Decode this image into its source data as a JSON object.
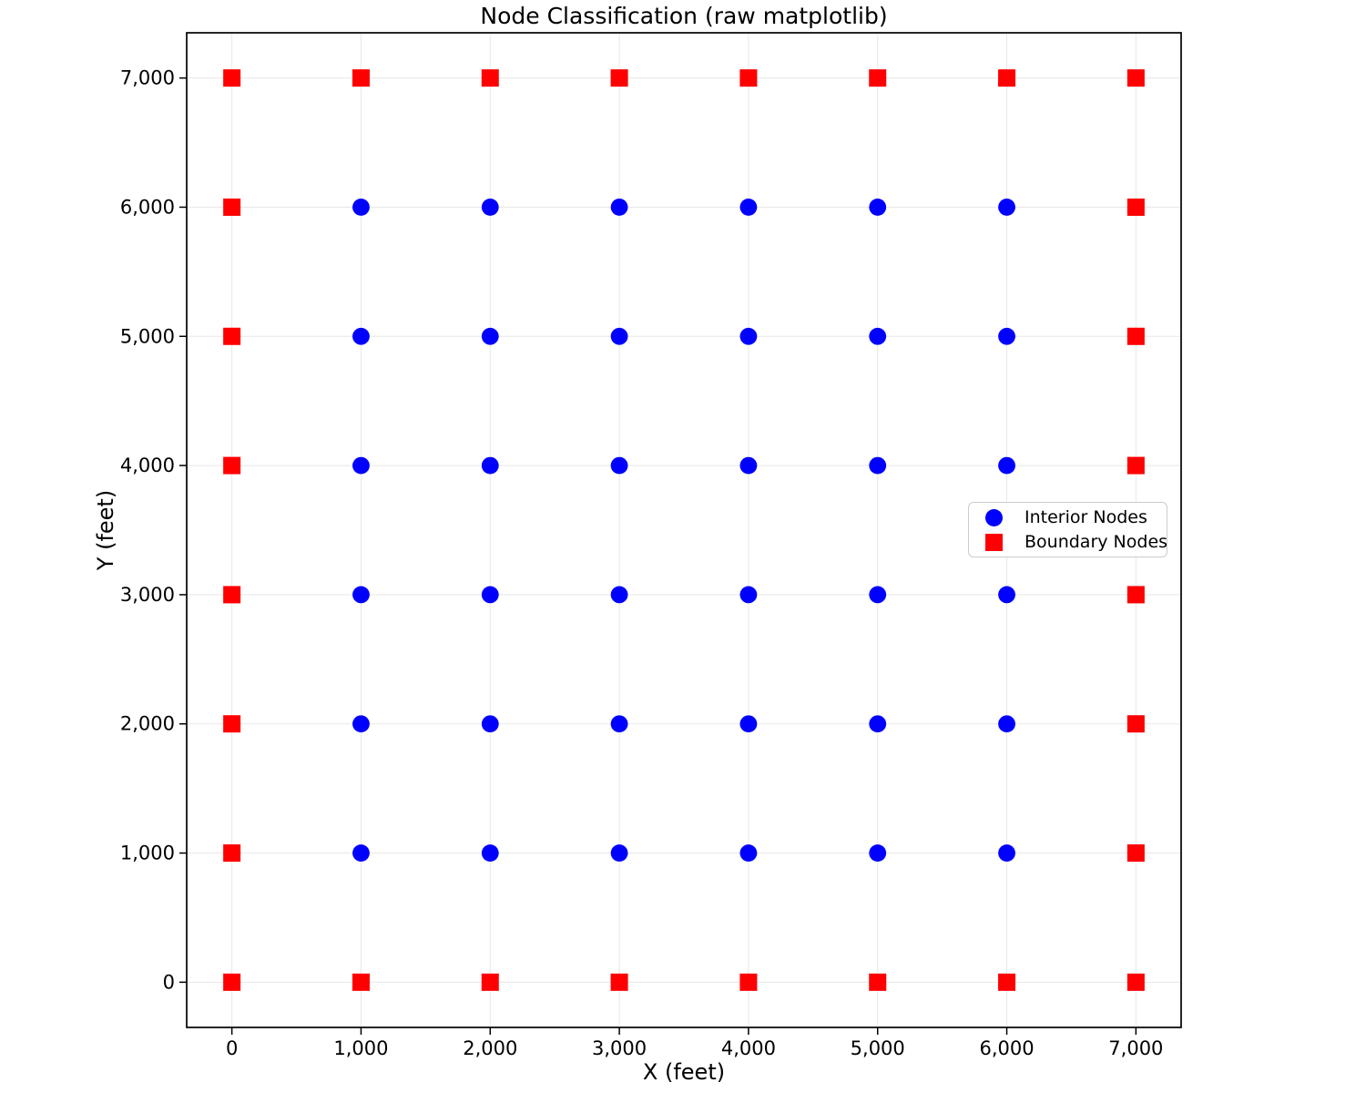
{
  "chart_data": {
    "type": "scatter",
    "title": "Node Classification (raw matplotlib)",
    "xlabel": "X (feet)",
    "ylabel": "Y (feet)",
    "xlim": [
      -350,
      7350
    ],
    "ylim": [
      -350,
      7350
    ],
    "xticks": [
      0,
      1000,
      2000,
      3000,
      4000,
      5000,
      6000,
      7000
    ],
    "yticks": [
      0,
      1000,
      2000,
      3000,
      4000,
      5000,
      6000,
      7000
    ],
    "tick_label_format": "thousands-comma",
    "grid": true,
    "grid_color": "#e7e7e7",
    "spine_color": "#000000",
    "legend_position": "inside-center-right",
    "series": [
      {
        "name": "Interior Nodes",
        "marker": "circle",
        "color": "#0000ff",
        "points": [
          [
            1000,
            1000
          ],
          [
            1000,
            2000
          ],
          [
            1000,
            3000
          ],
          [
            1000,
            4000
          ],
          [
            1000,
            5000
          ],
          [
            1000,
            6000
          ],
          [
            2000,
            1000
          ],
          [
            2000,
            2000
          ],
          [
            2000,
            3000
          ],
          [
            2000,
            4000
          ],
          [
            2000,
            5000
          ],
          [
            2000,
            6000
          ],
          [
            3000,
            1000
          ],
          [
            3000,
            2000
          ],
          [
            3000,
            3000
          ],
          [
            3000,
            4000
          ],
          [
            3000,
            5000
          ],
          [
            3000,
            6000
          ],
          [
            4000,
            1000
          ],
          [
            4000,
            2000
          ],
          [
            4000,
            3000
          ],
          [
            4000,
            4000
          ],
          [
            4000,
            5000
          ],
          [
            4000,
            6000
          ],
          [
            5000,
            1000
          ],
          [
            5000,
            2000
          ],
          [
            5000,
            3000
          ],
          [
            5000,
            4000
          ],
          [
            5000,
            5000
          ],
          [
            5000,
            6000
          ],
          [
            6000,
            1000
          ],
          [
            6000,
            2000
          ],
          [
            6000,
            3000
          ],
          [
            6000,
            4000
          ],
          [
            6000,
            5000
          ],
          [
            6000,
            6000
          ]
        ]
      },
      {
        "name": "Boundary Nodes",
        "marker": "square",
        "color": "#ff0000",
        "points": [
          [
            0,
            0
          ],
          [
            1000,
            0
          ],
          [
            2000,
            0
          ],
          [
            3000,
            0
          ],
          [
            4000,
            0
          ],
          [
            5000,
            0
          ],
          [
            6000,
            0
          ],
          [
            7000,
            0
          ],
          [
            0,
            7000
          ],
          [
            1000,
            7000
          ],
          [
            2000,
            7000
          ],
          [
            3000,
            7000
          ],
          [
            4000,
            7000
          ],
          [
            5000,
            7000
          ],
          [
            6000,
            7000
          ],
          [
            7000,
            7000
          ],
          [
            0,
            1000
          ],
          [
            0,
            2000
          ],
          [
            0,
            3000
          ],
          [
            0,
            4000
          ],
          [
            0,
            5000
          ],
          [
            0,
            6000
          ],
          [
            7000,
            1000
          ],
          [
            7000,
            2000
          ],
          [
            7000,
            3000
          ],
          [
            7000,
            4000
          ],
          [
            7000,
            5000
          ],
          [
            7000,
            6000
          ]
        ]
      }
    ]
  }
}
